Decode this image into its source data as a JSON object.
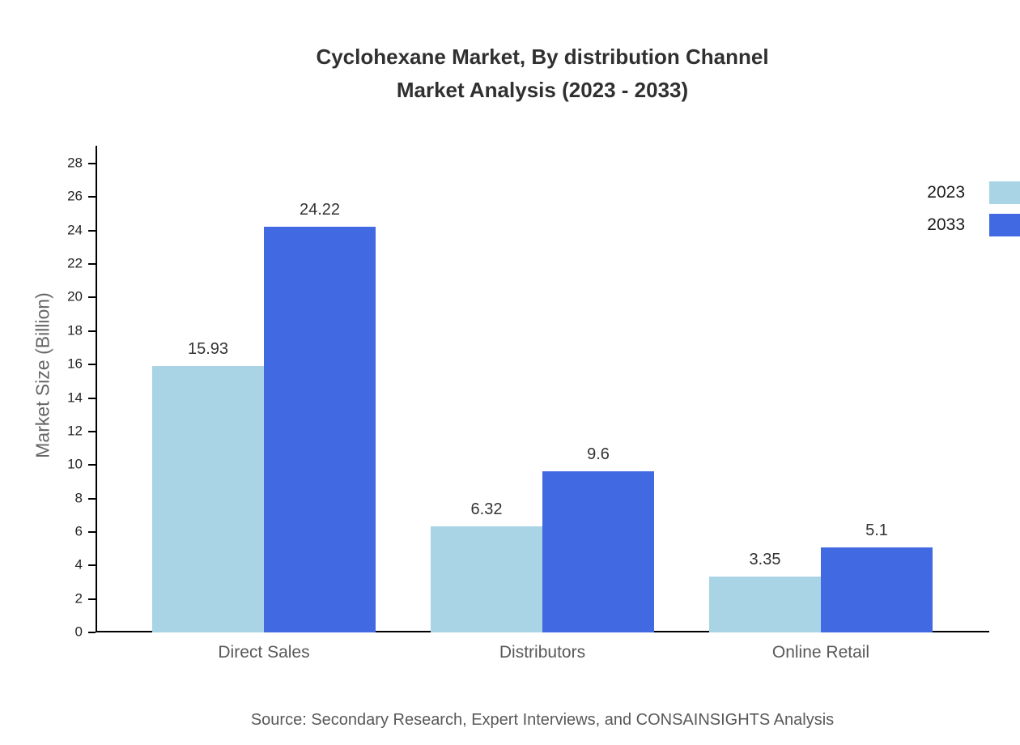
{
  "title": {
    "line1": "Cyclohexane Market, By distribution Channel",
    "line2": "Market Analysis (2023 - 2033)"
  },
  "source": "Source: Secondary Research, Expert Interviews, and CONSAINSIGHTS Analysis",
  "chart_data": {
    "type": "bar",
    "categories": [
      "Direct Sales",
      "Distributors",
      "Online Retail"
    ],
    "series": [
      {
        "name": "2023",
        "color": "#a8d4e6",
        "values": [
          15.93,
          6.32,
          3.35
        ]
      },
      {
        "name": "2033",
        "color": "#4169e1",
        "values": [
          24.22,
          9.6,
          5.1
        ]
      }
    ],
    "ylabel": "Market Size (Billion)",
    "ylim": [
      0,
      28
    ],
    "ytick_step": 2,
    "grid": false,
    "legend_position": "top-right"
  }
}
